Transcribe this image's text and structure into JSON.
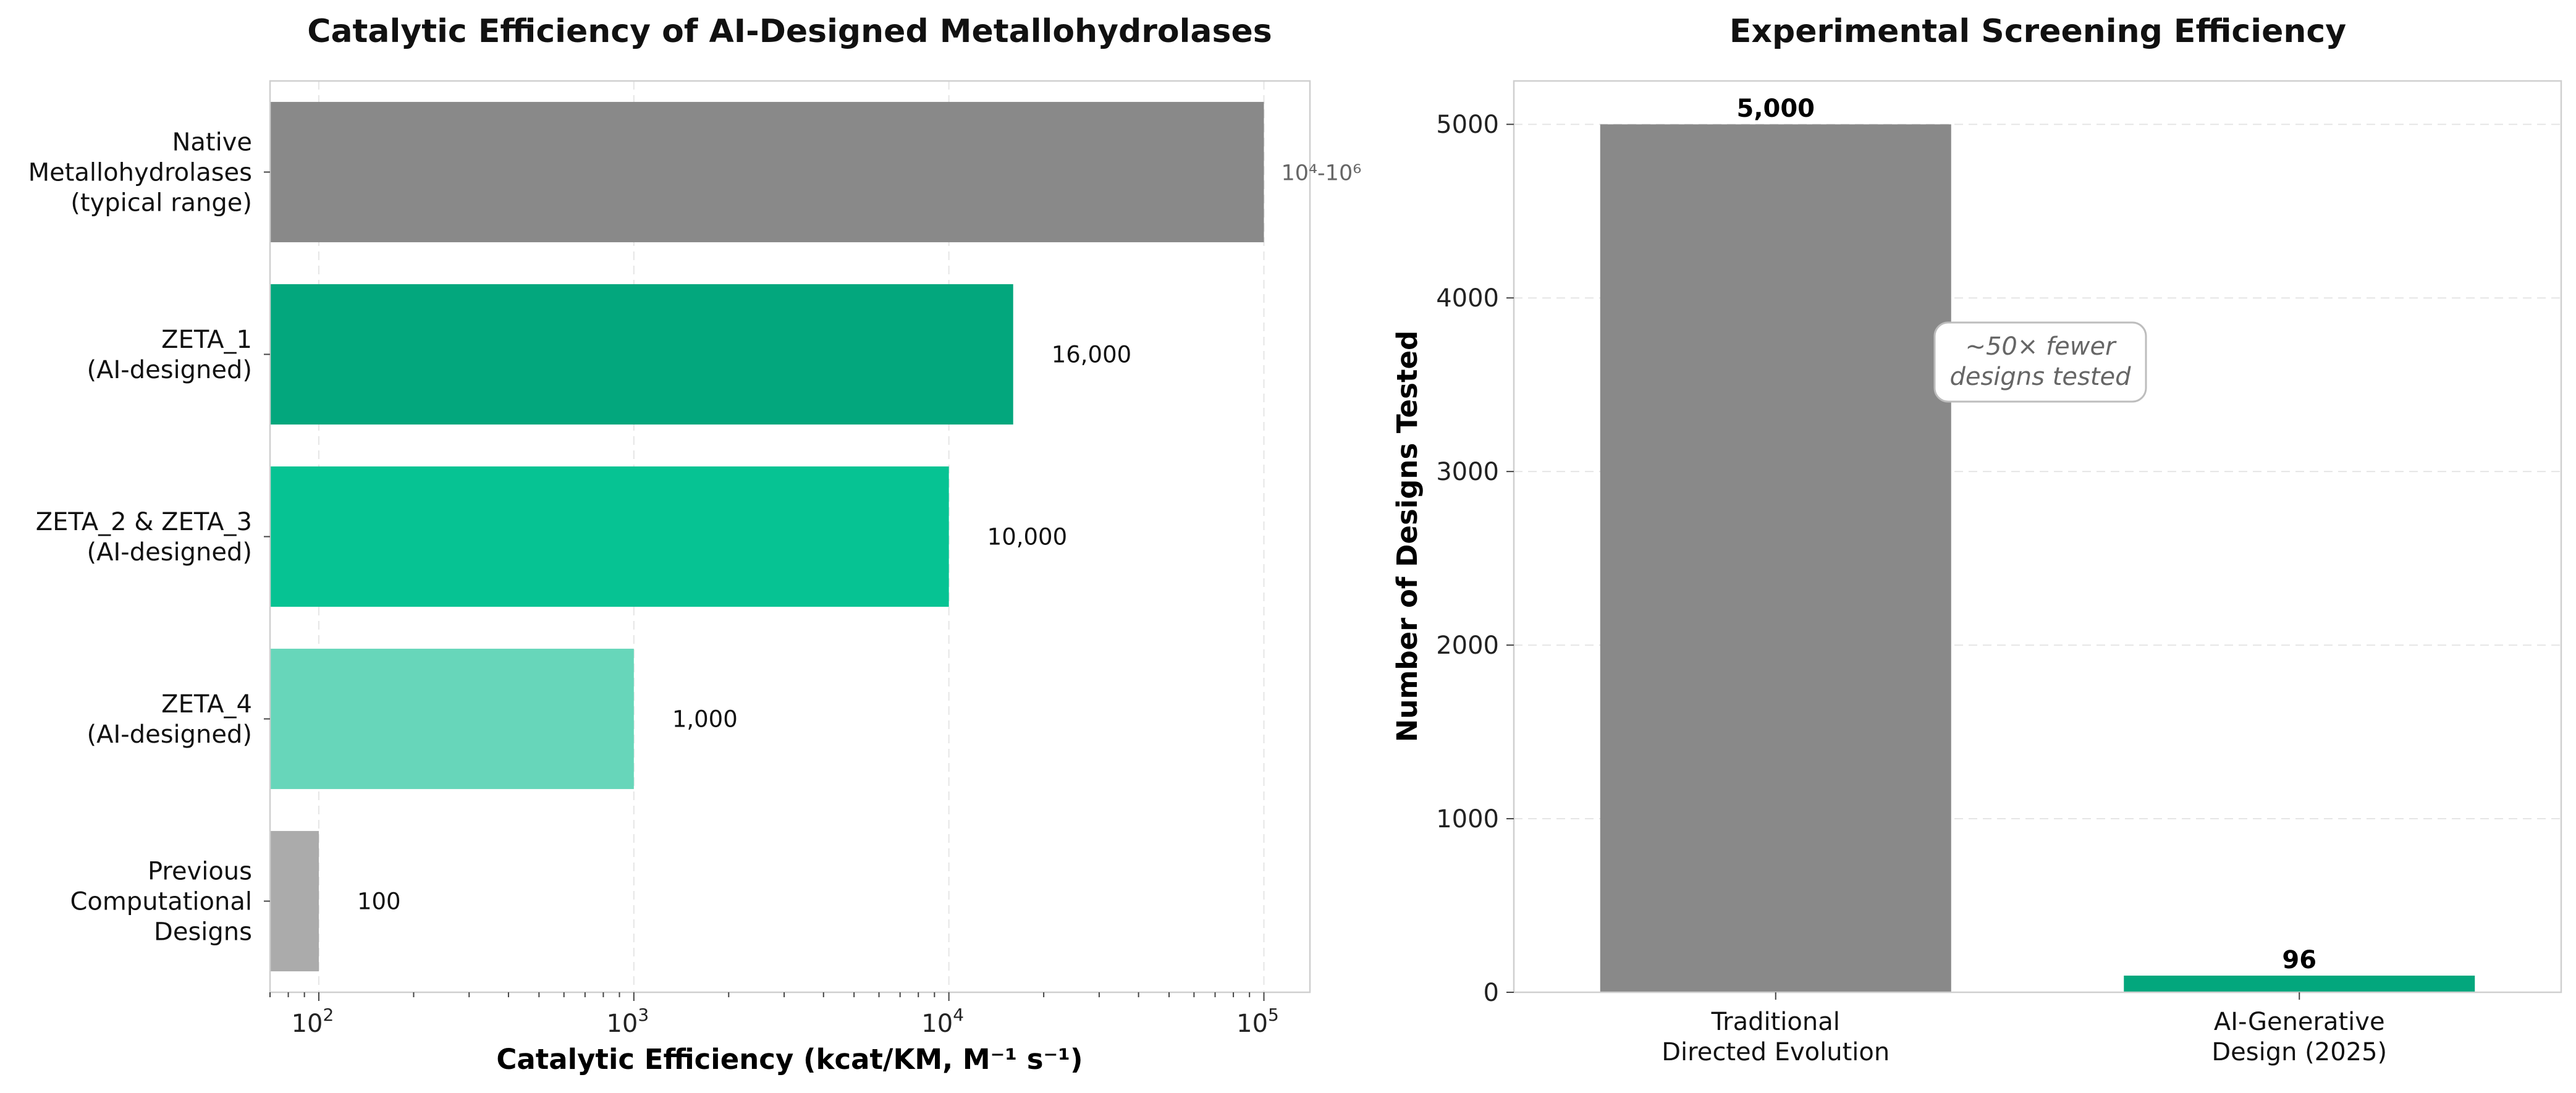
{
  "chart_data": [
    {
      "type": "bar",
      "orientation": "horizontal",
      "title": "Catalytic Efficiency of AI-Designed Metallohydrolases",
      "xlabel": "Catalytic Efficiency (kcat/KM, M⁻¹ s⁻¹)",
      "ylabel": "",
      "xscale": "log",
      "xlim": [
        70,
        140000
      ],
      "xticks": [
        {
          "value": 100,
          "base": "10",
          "exp": "2"
        },
        {
          "value": 1000,
          "base": "10",
          "exp": "3"
        },
        {
          "value": 10000,
          "base": "10",
          "exp": "4"
        },
        {
          "value": 100000,
          "base": "10",
          "exp": "5"
        }
      ],
      "bars": [
        {
          "label_lines": [
            "Native",
            "Metallohydrolases",
            "(typical range)"
          ],
          "value": 100000,
          "display": "10⁴-10⁶",
          "color": "#898989"
        },
        {
          "label_lines": [
            "ZETA_1",
            "(AI-designed)"
          ],
          "value": 16000,
          "display": "16,000",
          "color": "#03a77d"
        },
        {
          "label_lines": [
            "ZETA_2 & ZETA_3",
            "(AI-designed)"
          ],
          "value": 10000,
          "display": "10,000",
          "color": "#06c393"
        },
        {
          "label_lines": [
            "ZETA_4",
            "(AI-designed)"
          ],
          "value": 1000,
          "display": "1,000",
          "color": "#67d6ba"
        },
        {
          "label_lines": [
            "Previous",
            "Computational",
            "Designs"
          ],
          "value": 100,
          "display": "100",
          "color": "#ababab"
        }
      ],
      "grid": true
    },
    {
      "type": "bar",
      "title": "Experimental Screening Efficiency",
      "xlabel": "",
      "ylabel": "Number of Designs Tested",
      "ylim": [
        0,
        5250
      ],
      "yticks": [
        0,
        1000,
        2000,
        3000,
        4000,
        5000
      ],
      "bars": [
        {
          "label_lines": [
            "Traditional",
            "Directed Evolution"
          ],
          "value": 5000,
          "display": "5,000",
          "color": "#898989"
        },
        {
          "label_lines": [
            "AI-Generative",
            "Design (2025)"
          ],
          "value": 96,
          "display": "96",
          "color": "#03a77d"
        }
      ],
      "annotation_lines": [
        "~50× fewer",
        "designs tested"
      ],
      "grid": true
    }
  ]
}
